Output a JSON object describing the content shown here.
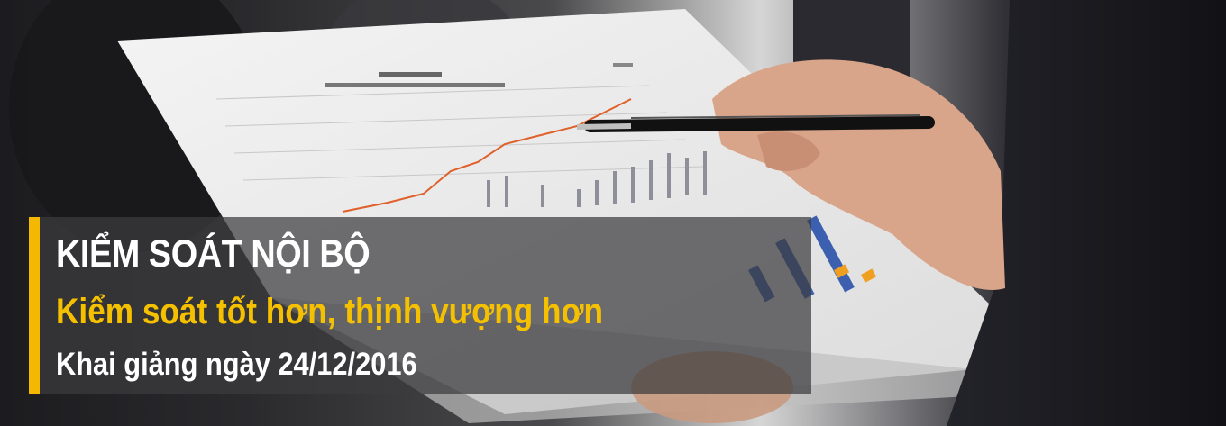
{
  "banner": {
    "title": "KIỂM SOÁT NỘI BỘ",
    "subtitle": "Kiểm soát tốt hơn, thịnh vượng hơn",
    "date_line": "Khai giảng ngày 24/12/2016"
  },
  "colors": {
    "accent": "#f5b800",
    "subtitle_text": "#f5c000",
    "title_text": "#ffffff",
    "overlay": "#3c3c3e"
  }
}
